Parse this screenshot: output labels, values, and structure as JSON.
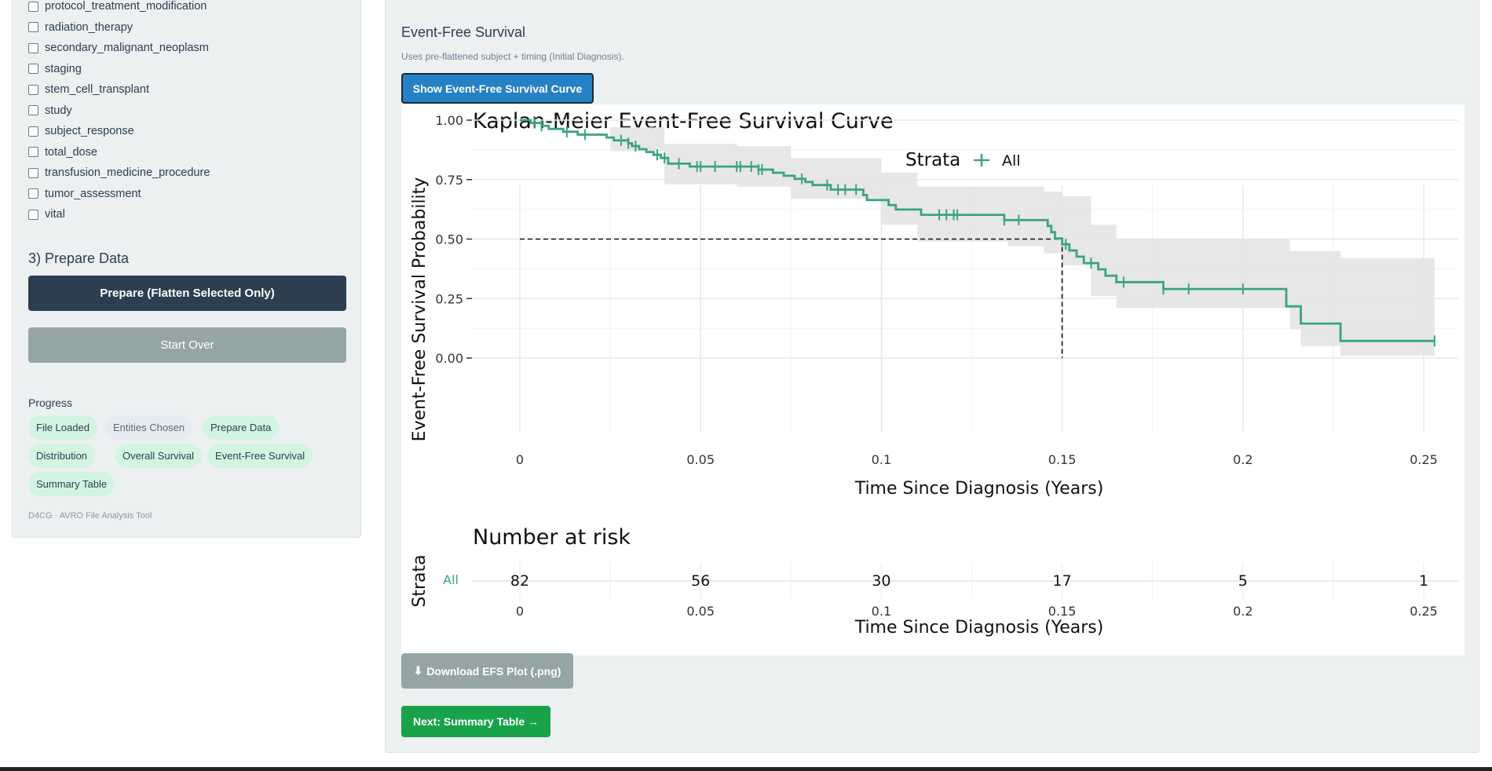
{
  "sidebar": {
    "entities": [
      "protocol_treatment_modification",
      "radiation_therapy",
      "secondary_malignant_neoplasm",
      "staging",
      "stem_cell_transplant",
      "study",
      "subject_response",
      "total_dose",
      "transfusion_medicine_procedure",
      "tumor_assessment",
      "vital"
    ],
    "prepare_heading": "3) Prepare Data",
    "prepare_button": "Prepare (Flatten Selected Only)",
    "start_over_button": "Start Over",
    "progress_heading": "Progress",
    "progress_steps": [
      {
        "label": "File Loaded",
        "done": true
      },
      {
        "label": "Entities Chosen",
        "done": false
      },
      {
        "label": "Prepare Data",
        "done": true
      },
      {
        "label": "Distribution",
        "done": true
      },
      {
        "label": "Overall Survival",
        "done": true
      },
      {
        "label": "Event-Free Survival",
        "done": true
      },
      {
        "label": "Summary Table",
        "done": true
      }
    ],
    "footer": "D4CG · AVRO File Analysis Tool"
  },
  "main": {
    "heading": "Event-Free Survival",
    "note": "Uses pre-flattened subject + timing (Initial Diagnosis).",
    "show_button": "Show Event-Free Survival Curve",
    "download_button": "Download EFS Plot (.png)",
    "download_icon": "download-icon",
    "next_button": "Next: Summary Table →"
  },
  "colors": {
    "curve": "#3aa382",
    "ci_band": "#e3e3e3",
    "primary": "#2681c4",
    "dark": "#2c3e50",
    "muted": "#95a5a6",
    "success": "#18a34a"
  },
  "chart_data": {
    "type": "line",
    "subtype": "kaplan-meier step",
    "title": "Kaplan-Meier Event-Free Survival Curve",
    "legend_title": "Strata",
    "legend_placement": "top",
    "series": [
      {
        "name": "All"
      }
    ],
    "xlabel": "Time Since Diagnosis (Years)",
    "ylabel": "Event-Free Survival Probability",
    "xlim": [
      0,
      0.255
    ],
    "ylim": [
      0,
      1
    ],
    "x_ticks": [
      0,
      0.05,
      0.1,
      0.15,
      0.2,
      0.25
    ],
    "x_tick_labels": [
      "0",
      "0.05",
      "0.1",
      "0.15",
      "0.2",
      "0.25"
    ],
    "y_ticks": [
      0,
      0.25,
      0.5,
      0.75,
      1
    ],
    "y_tick_labels": [
      "0.00",
      "0.25",
      "0.50",
      "0.75",
      "1.00"
    ],
    "grid": true,
    "median_survival": 0.15,
    "steps": [
      [
        0,
        1.0
      ],
      [
        0.003,
        0.988
      ],
      [
        0.006,
        0.976
      ],
      [
        0.008,
        0.963
      ],
      [
        0.012,
        0.951
      ],
      [
        0.016,
        0.939
      ],
      [
        0.024,
        0.927
      ],
      [
        0.026,
        0.915
      ],
      [
        0.03,
        0.903
      ],
      [
        0.031,
        0.891
      ],
      [
        0.033,
        0.878
      ],
      [
        0.035,
        0.866
      ],
      [
        0.037,
        0.854
      ],
      [
        0.039,
        0.841
      ],
      [
        0.041,
        0.817
      ],
      [
        0.044,
        0.817
      ],
      [
        0.047,
        0.805
      ],
      [
        0.06,
        0.805
      ],
      [
        0.066,
        0.792
      ],
      [
        0.07,
        0.779
      ],
      [
        0.073,
        0.766
      ],
      [
        0.076,
        0.753
      ],
      [
        0.079,
        0.74
      ],
      [
        0.081,
        0.727
      ],
      [
        0.086,
        0.708
      ],
      [
        0.091,
        0.708
      ],
      [
        0.095,
        0.685
      ],
      [
        0.096,
        0.664
      ],
      [
        0.102,
        0.643
      ],
      [
        0.104,
        0.624
      ],
      [
        0.111,
        0.602
      ],
      [
        0.131,
        0.602
      ],
      [
        0.134,
        0.58
      ],
      [
        0.146,
        0.555
      ],
      [
        0.147,
        0.529
      ],
      [
        0.148,
        0.503
      ],
      [
        0.15,
        0.478
      ],
      [
        0.152,
        0.452
      ],
      [
        0.154,
        0.426
      ],
      [
        0.156,
        0.399
      ],
      [
        0.16,
        0.373
      ],
      [
        0.162,
        0.346
      ],
      [
        0.165,
        0.319
      ],
      [
        0.178,
        0.29
      ],
      [
        0.2,
        0.29
      ],
      [
        0.212,
        0.217
      ],
      [
        0.216,
        0.145
      ],
      [
        0.227,
        0.072
      ],
      [
        0.253,
        0.072
      ]
    ],
    "ci_upper": [
      [
        0,
        1.0
      ],
      [
        0.025,
        0.97
      ],
      [
        0.04,
        0.9
      ],
      [
        0.06,
        0.89
      ],
      [
        0.075,
        0.84
      ],
      [
        0.1,
        0.78
      ],
      [
        0.11,
        0.72
      ],
      [
        0.135,
        0.72
      ],
      [
        0.145,
        0.7
      ],
      [
        0.15,
        0.68
      ],
      [
        0.158,
        0.56
      ],
      [
        0.165,
        0.5
      ],
      [
        0.2,
        0.5
      ],
      [
        0.213,
        0.45
      ],
      [
        0.227,
        0.42
      ],
      [
        0.253,
        0.42
      ]
    ],
    "ci_lower": [
      [
        0,
        1.0
      ],
      [
        0.025,
        0.87
      ],
      [
        0.04,
        0.73
      ],
      [
        0.06,
        0.72
      ],
      [
        0.075,
        0.67
      ],
      [
        0.1,
        0.56
      ],
      [
        0.11,
        0.49
      ],
      [
        0.135,
        0.47
      ],
      [
        0.145,
        0.44
      ],
      [
        0.15,
        0.39
      ],
      [
        0.158,
        0.26
      ],
      [
        0.165,
        0.21
      ],
      [
        0.2,
        0.21
      ],
      [
        0.213,
        0.12
      ],
      [
        0.216,
        0.05
      ],
      [
        0.227,
        0.01
      ],
      [
        0.253,
        0.01
      ]
    ],
    "censor_times": [
      0.004,
      0.006,
      0.013,
      0.018,
      0.028,
      0.03,
      0.032,
      0.038,
      0.04,
      0.044,
      0.049,
      0.05,
      0.054,
      0.06,
      0.061,
      0.064,
      0.066,
      0.067,
      0.078,
      0.085,
      0.088,
      0.09,
      0.093,
      0.116,
      0.118,
      0.12,
      0.121,
      0.134,
      0.138,
      0.151,
      0.158,
      0.167,
      0.178,
      0.178,
      0.185,
      0.2,
      0.253
    ],
    "risk_table": {
      "title": "Number at risk",
      "ylabel": "Strata",
      "strata_label": "All",
      "times": [
        0,
        0.05,
        0.1,
        0.15,
        0.2,
        0.25
      ],
      "time_labels": [
        "0",
        "0.05",
        "0.1",
        "0.15",
        "0.2",
        "0.25"
      ],
      "counts": [
        82,
        56,
        30,
        17,
        5,
        1
      ],
      "xlabel": "Time Since Diagnosis (Years)"
    }
  }
}
